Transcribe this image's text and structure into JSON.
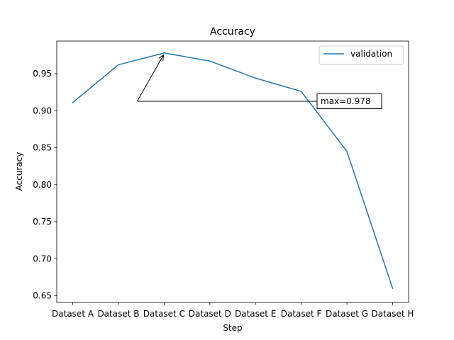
{
  "chart_data": {
    "type": "line",
    "title": "Accuracy",
    "xlabel": "Step",
    "ylabel": "Accuracy",
    "categories": [
      "Dataset A",
      "Dataset B",
      "Dataset C",
      "Dataset D",
      "Dataset E",
      "Dataset F",
      "Dataset G",
      "Dataset H"
    ],
    "series": [
      {
        "name": "validation",
        "color": "#1f77b4",
        "values": [
          0.911,
          0.962,
          0.978,
          0.967,
          0.944,
          0.926,
          0.845,
          0.66
        ]
      }
    ],
    "ylim": [
      0.641,
      0.994
    ],
    "yticks": [
      0.65,
      0.7,
      0.75,
      0.8,
      0.85,
      0.9,
      0.95
    ],
    "ytick_labels": [
      "0.65",
      "0.70",
      "0.75",
      "0.80",
      "0.85",
      "0.90",
      "0.95"
    ],
    "grid": false,
    "legend": "top-right",
    "annotation": {
      "text": "max=0.978",
      "target_category": "Dataset C",
      "target_value": 0.978
    }
  }
}
